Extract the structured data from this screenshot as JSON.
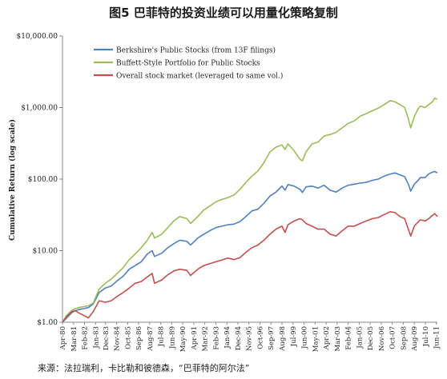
{
  "chart_data": {
    "type": "line",
    "title": "图5  巴菲特的投资业绩可以用量化策略复制",
    "xlabel": "",
    "ylabel": "Cumulative Return (log scale)",
    "yscale": "log",
    "ylim": [
      1,
      10000
    ],
    "yticks": [
      {
        "value": 1,
        "label": "$1.00"
      },
      {
        "value": 10,
        "label": "$10.00"
      },
      {
        "value": 100,
        "label": "$100.00"
      },
      {
        "value": 1000,
        "label": "$1,000.00"
      },
      {
        "value": 10000,
        "label": "$10,000.00"
      }
    ],
    "xlim": [
      1980.25,
      2011.42
    ],
    "xticks": [
      {
        "value": 1980.25,
        "label": "Apr-80"
      },
      {
        "value": 1981.17,
        "label": "Mar-81"
      },
      {
        "value": 1982.08,
        "label": "Feb-82"
      },
      {
        "value": 1983.0,
        "label": "Jan-83"
      },
      {
        "value": 1983.83,
        "label": "Dec-83"
      },
      {
        "value": 1984.75,
        "label": "Nov-84"
      },
      {
        "value": 1985.67,
        "label": "Oct-85"
      },
      {
        "value": 1986.58,
        "label": "Sep-86"
      },
      {
        "value": 1987.5,
        "label": "Aug-87"
      },
      {
        "value": 1988.42,
        "label": "Jul-88"
      },
      {
        "value": 1989.33,
        "label": "Jun-89"
      },
      {
        "value": 1990.25,
        "label": "May-90"
      },
      {
        "value": 1991.17,
        "label": "Apr-91"
      },
      {
        "value": 1992.08,
        "label": "Mar-92"
      },
      {
        "value": 1993.0,
        "label": "Feb-93"
      },
      {
        "value": 1993.92,
        "label": "Jan-94"
      },
      {
        "value": 1994.83,
        "label": "Dec-94"
      },
      {
        "value": 1995.75,
        "label": "Nov-95"
      },
      {
        "value": 1996.67,
        "label": "Oct-96"
      },
      {
        "value": 1997.58,
        "label": "Sep-97"
      },
      {
        "value": 1998.5,
        "label": "Aug-98"
      },
      {
        "value": 1999.42,
        "label": "Jul-99"
      },
      {
        "value": 2000.33,
        "label": "Jun-00"
      },
      {
        "value": 2001.25,
        "label": "May-01"
      },
      {
        "value": 2002.17,
        "label": "Apr-02"
      },
      {
        "value": 2003.08,
        "label": "Mar-03"
      },
      {
        "value": 2004.0,
        "label": "Feb-04"
      },
      {
        "value": 2004.92,
        "label": "Jan-05"
      },
      {
        "value": 2005.83,
        "label": "Dec-05"
      },
      {
        "value": 2006.75,
        "label": "Nov-06"
      },
      {
        "value": 2007.67,
        "label": "Oct-07"
      },
      {
        "value": 2008.58,
        "label": "Sep-08"
      },
      {
        "value": 2009.5,
        "label": "Aug-09"
      },
      {
        "value": 2010.42,
        "label": "Jul-10"
      },
      {
        "value": 2011.33,
        "label": "Jun-11"
      }
    ],
    "legend_position": "top-left",
    "series": [
      {
        "name": "Berkshire's Public Stocks (from 13F filings)",
        "color": "#4f81bd",
        "x": [
          1980.25,
          1980.6,
          1981.0,
          1981.3,
          1981.6,
          1982.0,
          1982.4,
          1982.8,
          1983.3,
          1983.8,
          1984.3,
          1984.8,
          1985.3,
          1985.8,
          1986.3,
          1986.8,
          1987.3,
          1987.7,
          1987.9,
          1988.5,
          1989.0,
          1989.5,
          1990.0,
          1990.6,
          1990.9,
          1991.5,
          1992.0,
          1992.5,
          1993.0,
          1993.5,
          1994.0,
          1994.5,
          1995.0,
          1995.5,
          1996.0,
          1996.5,
          1997.0,
          1997.5,
          1998.0,
          1998.5,
          1998.75,
          1999.0,
          1999.5,
          2000.0,
          2000.2,
          2000.5,
          2001.0,
          2001.5,
          2002.0,
          2002.5,
          2003.0,
          2003.5,
          2004.0,
          2004.5,
          2005.0,
          2005.5,
          2006.0,
          2006.5,
          2007.0,
          2007.5,
          2007.9,
          2008.3,
          2008.7,
          2009.0,
          2009.2,
          2009.5,
          2009.8,
          2010.0,
          2010.4,
          2010.7,
          2011.0,
          2011.2,
          2011.42
        ],
        "values": [
          1.0,
          1.15,
          1.35,
          1.45,
          1.5,
          1.55,
          1.6,
          1.8,
          2.6,
          3.0,
          3.2,
          3.8,
          4.4,
          5.5,
          6.2,
          7.0,
          9.0,
          10.0,
          8.3,
          9.2,
          11.0,
          12.5,
          14.0,
          13.5,
          12.0,
          15.0,
          17.0,
          19.0,
          21.0,
          22.0,
          23.0,
          23.5,
          25.5,
          30.0,
          36.0,
          38.0,
          46.0,
          58.0,
          66.0,
          80.0,
          70.0,
          84.0,
          80.0,
          72.0,
          65.0,
          78.0,
          80.0,
          75.0,
          82.0,
          70.0,
          66.0,
          75.0,
          82.0,
          85.0,
          88.0,
          90.0,
          96.0,
          100.0,
          110.0,
          118.0,
          122.0,
          115.0,
          108.0,
          85.0,
          68.0,
          85.0,
          95.0,
          105.0,
          105.0,
          118.0,
          125.0,
          128.0,
          122.0
        ]
      },
      {
        "name": "Buffett-Style Portfolio for Public Stocks",
        "color": "#9bbb59",
        "x": [
          1980.25,
          1980.6,
          1981.0,
          1981.3,
          1981.6,
          1982.0,
          1982.4,
          1982.8,
          1983.3,
          1983.8,
          1984.3,
          1984.8,
          1985.3,
          1985.8,
          1986.3,
          1986.8,
          1987.3,
          1987.7,
          1987.9,
          1988.5,
          1989.0,
          1989.5,
          1990.0,
          1990.6,
          1990.9,
          1991.5,
          1992.0,
          1992.5,
          1993.0,
          1993.5,
          1994.0,
          1994.5,
          1995.0,
          1995.5,
          1996.0,
          1996.5,
          1997.0,
          1997.5,
          1998.0,
          1998.5,
          1998.75,
          1999.0,
          1999.5,
          2000.0,
          2000.2,
          2000.5,
          2001.0,
          2001.5,
          2002.0,
          2002.5,
          2003.0,
          2003.5,
          2004.0,
          2004.5,
          2005.0,
          2005.5,
          2006.0,
          2006.5,
          2007.0,
          2007.5,
          2007.9,
          2008.3,
          2008.7,
          2009.0,
          2009.2,
          2009.5,
          2009.8,
          2010.0,
          2010.4,
          2010.7,
          2011.0,
          2011.2,
          2011.42
        ],
        "values": [
          1.0,
          1.25,
          1.45,
          1.55,
          1.6,
          1.65,
          1.7,
          1.85,
          2.9,
          3.5,
          4.0,
          4.8,
          5.8,
          7.5,
          9.0,
          11.0,
          14.0,
          18.0,
          15.0,
          17.0,
          21.0,
          26.0,
          30.0,
          28.0,
          24.0,
          30.0,
          37.0,
          42.0,
          48.0,
          52.0,
          55.0,
          60.0,
          72.0,
          90.0,
          110.0,
          130.0,
          170.0,
          240.0,
          280.0,
          300.0,
          260.0,
          310.0,
          250.0,
          190.0,
          180.0,
          240.0,
          310.0,
          330.0,
          400.0,
          420.0,
          450.0,
          520.0,
          600.0,
          650.0,
          760.0,
          820.0,
          900.0,
          980.0,
          1100.0,
          1250.0,
          1200.0,
          1100.0,
          1000.0,
          700.0,
          520.0,
          750.0,
          950.0,
          1050.0,
          1000.0,
          1100.0,
          1200.0,
          1350.0,
          1300.0
        ]
      },
      {
        "name": "Overall stock market (leveraged to same vol.)",
        "color": "#c0504d",
        "x": [
          1980.25,
          1980.6,
          1981.0,
          1981.3,
          1981.6,
          1982.0,
          1982.4,
          1982.8,
          1983.3,
          1983.8,
          1984.3,
          1984.8,
          1985.3,
          1985.8,
          1986.3,
          1986.8,
          1987.3,
          1987.7,
          1987.9,
          1988.5,
          1989.0,
          1989.5,
          1990.0,
          1990.6,
          1990.9,
          1991.5,
          1992.0,
          1992.5,
          1993.0,
          1993.5,
          1994.0,
          1994.5,
          1995.0,
          1995.5,
          1996.0,
          1996.5,
          1997.0,
          1997.5,
          1998.0,
          1998.5,
          1998.75,
          1999.0,
          1999.5,
          2000.0,
          2000.2,
          2000.5,
          2001.0,
          2001.5,
          2002.0,
          2002.5,
          2003.0,
          2003.5,
          2004.0,
          2004.5,
          2005.0,
          2005.5,
          2006.0,
          2006.5,
          2007.0,
          2007.5,
          2007.9,
          2008.3,
          2008.7,
          2009.0,
          2009.2,
          2009.5,
          2009.8,
          2010.0,
          2010.4,
          2010.7,
          2011.0,
          2011.2,
          2011.42
        ],
        "values": [
          1.0,
          1.2,
          1.4,
          1.45,
          1.35,
          1.25,
          1.15,
          1.4,
          2.0,
          1.9,
          2.0,
          2.3,
          2.6,
          3.0,
          3.5,
          3.7,
          4.3,
          4.8,
          3.5,
          3.9,
          4.6,
          5.2,
          5.5,
          5.3,
          4.5,
          5.5,
          6.2,
          6.6,
          7.0,
          7.4,
          7.9,
          7.5,
          8.0,
          9.5,
          11.0,
          12.0,
          14.0,
          17.0,
          20.0,
          22.0,
          18.0,
          23.0,
          26.0,
          28.0,
          27.0,
          24.0,
          22.0,
          20.0,
          20.0,
          17.0,
          16.0,
          19.0,
          22.0,
          22.0,
          24.0,
          26.0,
          28.0,
          29.0,
          32.0,
          35.0,
          34.0,
          30.0,
          28.0,
          20.0,
          16.0,
          22.0,
          25.0,
          27.0,
          26.0,
          28.0,
          31.0,
          33.0,
          30.0
        ]
      }
    ]
  },
  "footer": {
    "source": "来源：法拉瑞利，卡比勒和彼德森，“巴菲特的阿尔法”"
  }
}
